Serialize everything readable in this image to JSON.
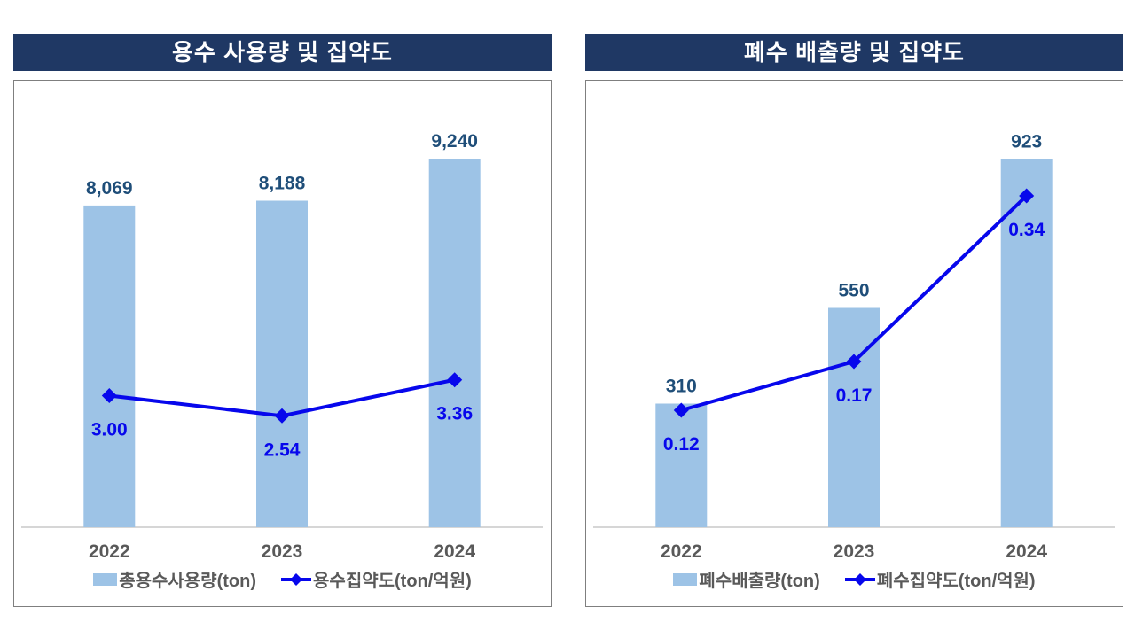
{
  "colors": {
    "title_bg": "#1F3864",
    "title_text": "#FFFFFF",
    "panel_border": "#7F7F7F",
    "bar_fill": "#9DC3E6",
    "bar_label": "#1F4E79",
    "line_color": "#0707EC",
    "line_label": "#0707EC",
    "axis_line": "#D6D6D6",
    "x_label": "#595959",
    "legend_text": "#595959"
  },
  "chart_data": [
    {
      "type": "bar+line combo",
      "title": "용수 사용량 및 집약도",
      "categories": [
        "2022",
        "2023",
        "2024"
      ],
      "series": [
        {
          "name": "총용수사용량(ton)",
          "type": "bar",
          "values": [
            8069,
            8188,
            9240
          ],
          "labels": [
            "8,069",
            "8,188",
            "9,240"
          ],
          "axis_max": 11000
        },
        {
          "name": "용수집약도(ton/억원)",
          "type": "line",
          "values": [
            3.0,
            2.54,
            3.36
          ],
          "labels": [
            "3.00",
            "2.54",
            "3.36"
          ],
          "axis_max": 10
        }
      ],
      "grid": false,
      "legend_position": "bottom"
    },
    {
      "type": "bar+line combo",
      "title": "폐수 배출량 및 집약도",
      "categories": [
        "2022",
        "2023",
        "2024"
      ],
      "series": [
        {
          "name": "폐수배출량(ton)",
          "type": "bar",
          "values": [
            310,
            550,
            923
          ],
          "labels": [
            "310",
            "550",
            "923"
          ],
          "axis_max": 1100
        },
        {
          "name": "폐수집약도(ton/억원)",
          "type": "line",
          "values": [
            0.12,
            0.17,
            0.34
          ],
          "labels": [
            "0.12",
            "0.17",
            "0.34"
          ],
          "axis_max": 0.45
        }
      ],
      "grid": false,
      "legend_position": "bottom"
    }
  ]
}
